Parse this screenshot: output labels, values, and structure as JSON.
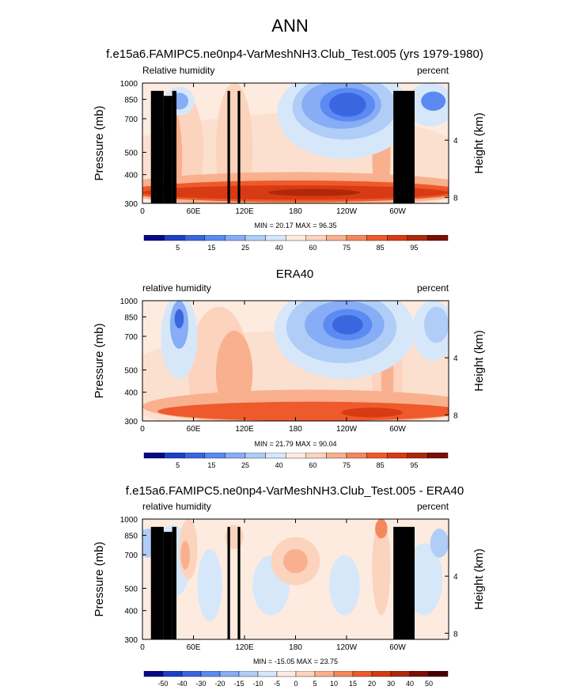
{
  "figure": {
    "title": "ANN"
  },
  "chart_data": [
    {
      "type": "heatmap",
      "title": "f.e15a6.FAMIPC5.ne0np4-VarMeshNH3.Club_Test.005 (yrs 1979-1980)",
      "left_label": "Relative humidity",
      "right_label": "percent",
      "ylabel": "Pressure (mb)",
      "y2label": "Height (km)",
      "x_ticks": [
        "0",
        "60E",
        "120E",
        "180",
        "120W",
        "60W"
      ],
      "y_ticks": [
        "300",
        "400",
        "500",
        "700",
        "850",
        "1000"
      ],
      "y2_ticks": [
        "8",
        "4"
      ],
      "stats": "MIN = 20.17  MAX = 96.35",
      "min": 20.17,
      "max": 96.35,
      "colorbar_labels": [
        "5",
        "15",
        "25",
        "40",
        "60",
        "75",
        "85",
        "95"
      ],
      "colorbar_colors": [
        "#08088a",
        "#1f3fc8",
        "#3a66e0",
        "#5a8af2",
        "#86adf5",
        "#b0cdf7",
        "#d6e7fa",
        "#fdebe0",
        "#fcd3bc",
        "#f9b08e",
        "#f5875c",
        "#ef5a2c",
        "#d83b13",
        "#b0280a",
        "#7a1004"
      ],
      "terrain": true
    },
    {
      "type": "heatmap",
      "title": "ERA40",
      "left_label": "relative humidity",
      "right_label": "percent",
      "ylabel": "Pressure (mb)",
      "y2label": "Height (km)",
      "x_ticks": [
        "0",
        "60E",
        "120E",
        "180",
        "120W",
        "60W"
      ],
      "y_ticks": [
        "300",
        "400",
        "500",
        "700",
        "850",
        "1000"
      ],
      "y2_ticks": [
        "8",
        "4"
      ],
      "stats": "MIN = 21.79  MAX = 90.04",
      "min": 21.79,
      "max": 90.04,
      "colorbar_labels": [
        "5",
        "15",
        "25",
        "40",
        "60",
        "75",
        "85",
        "95"
      ],
      "colorbar_colors": [
        "#08088a",
        "#1f3fc8",
        "#3a66e0",
        "#5a8af2",
        "#86adf5",
        "#b0cdf7",
        "#d6e7fa",
        "#fdebe0",
        "#fcd3bc",
        "#f9b08e",
        "#f5875c",
        "#ef5a2c",
        "#d83b13",
        "#b0280a",
        "#7a1004"
      ],
      "terrain": false
    },
    {
      "type": "heatmap",
      "title": "f.e15a6.FAMIPC5.ne0np4-VarMeshNH3.Club_Test.005 - ERA40",
      "left_label": "relative humidity",
      "right_label": "percent",
      "ylabel": "Pressure (mb)",
      "y2label": "Height (km)",
      "x_ticks": [
        "0",
        "60E",
        "120E",
        "180",
        "120W",
        "60W"
      ],
      "y_ticks": [
        "300",
        "400",
        "500",
        "700",
        "850",
        "1000"
      ],
      "y2_ticks": [
        "8",
        "4"
      ],
      "stats": "MIN = -15.05  MAX = 23.75",
      "min": -15.05,
      "max": 23.75,
      "colorbar_labels": [
        "-50",
        "-40",
        "-30",
        "-20",
        "-15",
        "-10",
        "-5",
        "0",
        "5",
        "10",
        "15",
        "20",
        "30",
        "40",
        "50"
      ],
      "colorbar_colors": [
        "#08088a",
        "#1f3fc8",
        "#3a66e0",
        "#5a8af2",
        "#86adf5",
        "#b0cdf7",
        "#d6e7fa",
        "#fdebe0",
        "#fcd3bc",
        "#f9b08e",
        "#f5875c",
        "#ef5a2c",
        "#d83b13",
        "#b0280a",
        "#7a1004",
        "#4a0000"
      ],
      "terrain": true
    }
  ]
}
